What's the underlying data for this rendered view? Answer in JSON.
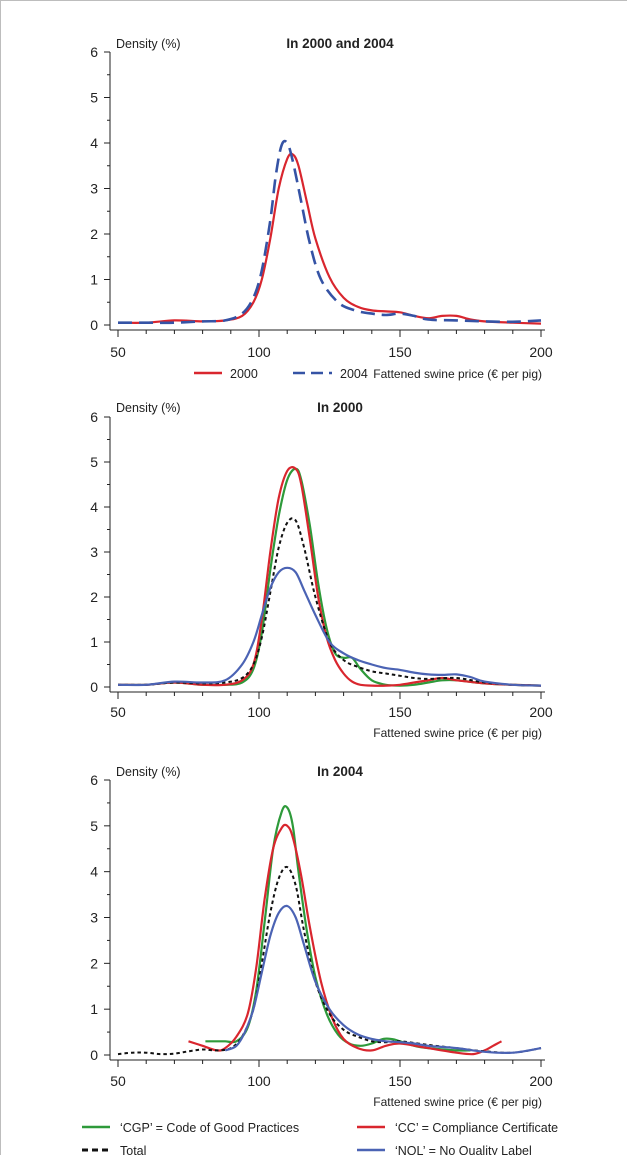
{
  "colors": {
    "2000": "#d9262e",
    "2004": "#3553a5",
    "CGP": "#2e9a3a",
    "CC": "#d9262e",
    "NQL": "#4b63b4",
    "Total": "#111111"
  },
  "chart_data": [
    {
      "type": "line",
      "title": "In 2000 and 2004",
      "ylabel": "Density (%)",
      "xlabel": "Fattened swine price (€ per pig)",
      "xlim": [
        50,
        200
      ],
      "ylim": [
        0,
        6
      ],
      "xticks": [
        "50",
        "100",
        "150",
        "200"
      ],
      "yticks": [
        "0",
        "1",
        "2",
        "3",
        "4",
        "5",
        "6"
      ],
      "legend": [
        {
          "label": "2000",
          "series": "2000"
        },
        {
          "label": "2004",
          "series": "2004"
        }
      ],
      "series": [
        {
          "name": "2000",
          "color": "#d9262e",
          "dash": "solid",
          "x": [
            50,
            60,
            70,
            80,
            88,
            94,
            98,
            101,
            104,
            107,
            110,
            112,
            114,
            117,
            120,
            125,
            130,
            135,
            140,
            145,
            150,
            155,
            160,
            165,
            170,
            175,
            180,
            190,
            200
          ],
          "y": [
            0.05,
            0.05,
            0.1,
            0.08,
            0.1,
            0.2,
            0.5,
            1.0,
            1.9,
            3.0,
            3.65,
            3.75,
            3.5,
            2.7,
            1.9,
            1.05,
            0.6,
            0.4,
            0.32,
            0.3,
            0.28,
            0.2,
            0.15,
            0.2,
            0.2,
            0.12,
            0.08,
            0.05,
            0.03
          ]
        },
        {
          "name": "2004",
          "color": "#3553a5",
          "dash": "long",
          "x": [
            50,
            60,
            70,
            80,
            88,
            94,
            98,
            101,
            104,
            106,
            108,
            110,
            112,
            115,
            118,
            122,
            128,
            134,
            140,
            145,
            150,
            155,
            160,
            170,
            180,
            190,
            200
          ],
          "y": [
            0.05,
            0.05,
            0.05,
            0.08,
            0.1,
            0.25,
            0.6,
            1.2,
            2.3,
            3.3,
            3.95,
            4.0,
            3.6,
            2.7,
            1.8,
            1.0,
            0.5,
            0.32,
            0.25,
            0.22,
            0.25,
            0.2,
            0.12,
            0.1,
            0.08,
            0.07,
            0.1
          ]
        }
      ]
    },
    {
      "type": "line",
      "title": "In 2000",
      "ylabel": "Density (%)",
      "xlabel": "Fattened swine price (€ per pig)",
      "xlim": [
        50,
        200
      ],
      "ylim": [
        0,
        6
      ],
      "xticks": [
        "50",
        "100",
        "150",
        "200"
      ],
      "yticks": [
        "0",
        "1",
        "2",
        "3",
        "4",
        "5",
        "6"
      ],
      "series": [
        {
          "name": "CGP",
          "color": "#2e9a3a",
          "dash": "solid",
          "x": [
            50,
            60,
            70,
            80,
            88,
            94,
            98,
            101,
            104,
            107,
            110,
            113,
            115,
            118,
            121,
            124,
            127,
            130,
            133,
            136,
            140,
            145,
            150,
            155,
            160,
            165,
            170,
            180,
            190,
            200
          ],
          "y": [
            0.05,
            0.05,
            0.1,
            0.05,
            0.05,
            0.1,
            0.4,
            1.2,
            2.6,
            3.8,
            4.6,
            4.85,
            4.6,
            3.6,
            2.3,
            1.3,
            0.75,
            0.65,
            0.65,
            0.4,
            0.15,
            0.05,
            0.03,
            0.05,
            0.1,
            0.15,
            0.15,
            0.08,
            0.05,
            0.03
          ]
        },
        {
          "name": "CC",
          "color": "#d9262e",
          "dash": "solid",
          "x": [
            50,
            60,
            70,
            80,
            88,
            94,
            98,
            101,
            104,
            107,
            110,
            113,
            115,
            118,
            121,
            124,
            127,
            130,
            133,
            136,
            140,
            145,
            150,
            155,
            160,
            165,
            170,
            180,
            190,
            200
          ],
          "y": [
            0.05,
            0.05,
            0.1,
            0.05,
            0.05,
            0.15,
            0.5,
            1.5,
            3.0,
            4.2,
            4.8,
            4.85,
            4.5,
            3.3,
            2.0,
            1.1,
            0.6,
            0.3,
            0.12,
            0.05,
            0.03,
            0.03,
            0.05,
            0.1,
            0.15,
            0.2,
            0.15,
            0.08,
            0.05,
            0.03
          ]
        },
        {
          "name": "Total",
          "color": "#111111",
          "dash": "dotted",
          "x": [
            50,
            60,
            70,
            80,
            88,
            94,
            98,
            101,
            104,
            107,
            110,
            113,
            116,
            120,
            125,
            130,
            135,
            140,
            145,
            150,
            155,
            160,
            170,
            180,
            190,
            200
          ],
          "y": [
            0.05,
            0.05,
            0.1,
            0.08,
            0.1,
            0.2,
            0.5,
            1.1,
            2.1,
            3.1,
            3.65,
            3.7,
            3.1,
            2.0,
            1.0,
            0.6,
            0.45,
            0.35,
            0.3,
            0.25,
            0.2,
            0.18,
            0.2,
            0.1,
            0.05,
            0.03
          ]
        },
        {
          "name": "NQL",
          "color": "#4b63b4",
          "dash": "solid",
          "x": [
            50,
            60,
            70,
            80,
            88,
            94,
            98,
            101,
            104,
            107,
            110,
            113,
            116,
            120,
            125,
            130,
            135,
            140,
            145,
            150,
            155,
            160,
            165,
            170,
            175,
            180,
            190,
            200
          ],
          "y": [
            0.05,
            0.05,
            0.12,
            0.1,
            0.15,
            0.5,
            1.0,
            1.6,
            2.2,
            2.55,
            2.65,
            2.55,
            2.15,
            1.6,
            1.0,
            0.75,
            0.6,
            0.5,
            0.42,
            0.38,
            0.32,
            0.28,
            0.27,
            0.28,
            0.22,
            0.12,
            0.05,
            0.03
          ]
        }
      ]
    },
    {
      "type": "line",
      "title": "In 2004",
      "ylabel": "Density (%)",
      "xlabel": "Fattened swine price (€ per pig)",
      "xlim": [
        50,
        200
      ],
      "ylim": [
        0,
        6
      ],
      "xticks": [
        "50",
        "100",
        "150",
        "200"
      ],
      "yticks": [
        "0",
        "1",
        "2",
        "3",
        "4",
        "5",
        "6"
      ],
      "legend": [
        {
          "label": "‘CGP’ = Code of Good Practices",
          "series": "CGP"
        },
        {
          "label": "‘CC’ = Compliance Certificate",
          "series": "CC"
        },
        {
          "label": "Total",
          "series": "Total"
        },
        {
          "label": "‘NQL’ = No Quality Label",
          "series": "NQL"
        }
      ],
      "series": [
        {
          "name": "CGP",
          "color": "#2e9a3a",
          "dash": "solid",
          "x": [
            81,
            85,
            88,
            92,
            96,
            99,
            102,
            105,
            108,
            110,
            112,
            114,
            117,
            120,
            124,
            128,
            132,
            136,
            140,
            144,
            147,
            150,
            155,
            160,
            170,
            175
          ],
          "y": [
            0.3,
            0.3,
            0.3,
            0.3,
            0.6,
            1.4,
            2.9,
            4.5,
            5.3,
            5.4,
            5.0,
            4.0,
            2.7,
            1.7,
            0.9,
            0.45,
            0.25,
            0.2,
            0.25,
            0.35,
            0.35,
            0.3,
            0.2,
            0.15,
            0.1,
            0.1
          ]
        },
        {
          "name": "CC",
          "color": "#d9262e",
          "dash": "solid",
          "x": [
            75,
            80,
            85,
            88,
            92,
            96,
            99,
            102,
            105,
            108,
            110,
            112,
            115,
            118,
            122,
            126,
            130,
            135,
            140,
            145,
            150,
            160,
            170,
            176,
            180,
            183,
            186
          ],
          "y": [
            0.3,
            0.2,
            0.1,
            0.15,
            0.4,
            0.9,
            1.9,
            3.4,
            4.5,
            4.95,
            5.0,
            4.75,
            3.9,
            2.8,
            1.6,
            0.8,
            0.35,
            0.15,
            0.1,
            0.2,
            0.25,
            0.15,
            0.05,
            0.02,
            0.1,
            0.2,
            0.3
          ]
        },
        {
          "name": "Total",
          "color": "#111111",
          "dash": "dotted",
          "x": [
            50,
            55,
            60,
            65,
            70,
            75,
            80,
            85,
            90,
            94,
            98,
            101,
            104,
            107,
            110,
            113,
            116,
            120,
            125,
            130,
            135,
            140,
            145,
            150,
            160,
            170,
            180,
            190,
            200
          ],
          "y": [
            0.02,
            0.05,
            0.05,
            0.02,
            0.03,
            0.08,
            0.12,
            0.1,
            0.15,
            0.4,
            1.0,
            2.0,
            3.1,
            3.85,
            4.1,
            3.7,
            2.7,
            1.6,
            0.9,
            0.55,
            0.4,
            0.3,
            0.28,
            0.3,
            0.22,
            0.15,
            0.08,
            0.05,
            0.15
          ]
        },
        {
          "name": "NQL",
          "color": "#4b63b4",
          "dash": "solid",
          "x": [
            88,
            92,
            95,
            98,
            101,
            104,
            107,
            110,
            113,
            116,
            120,
            125,
            130,
            135,
            140,
            145,
            150,
            155,
            160,
            170,
            180,
            190,
            200
          ],
          "y": [
            0.1,
            0.2,
            0.5,
            1.0,
            1.8,
            2.6,
            3.1,
            3.25,
            3.0,
            2.4,
            1.6,
            1.0,
            0.65,
            0.45,
            0.35,
            0.3,
            0.28,
            0.25,
            0.2,
            0.15,
            0.07,
            0.05,
            0.15
          ]
        }
      ]
    }
  ]
}
